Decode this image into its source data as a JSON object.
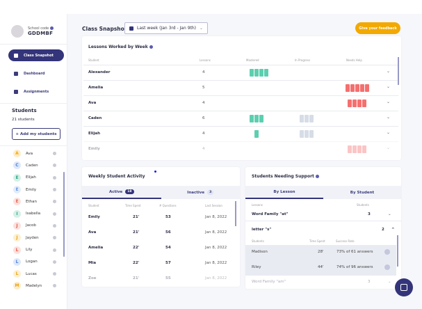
{
  "sidebar": {
    "school_code_label": "School code",
    "school_code": "GDDMBF",
    "nav": [
      {
        "label": "Class Snapshot",
        "active": true
      },
      {
        "label": "Dashboard"
      },
      {
        "label": "Assignments"
      }
    ],
    "students_title": "Students",
    "students_count": "21 students",
    "add_button": "+ Add my students",
    "students": [
      {
        "initial": "A",
        "name": "Ava",
        "color": "#f2a900",
        "bg": "#fdeccc"
      },
      {
        "initial": "C",
        "name": "Caden",
        "color": "#4a7fd8",
        "bg": "#dde8fa"
      },
      {
        "initial": "E",
        "name": "Elijah",
        "color": "#2fa785",
        "bg": "#d5f0e7"
      },
      {
        "initial": "E",
        "name": "Emily",
        "color": "#6b9be0",
        "bg": "#e3ecfa"
      },
      {
        "initial": "E",
        "name": "Ethan",
        "color": "#e66a5a",
        "bg": "#fbe1dd"
      },
      {
        "initial": "I",
        "name": "Isabella",
        "color": "#2fa785",
        "bg": "#d5f0e7"
      },
      {
        "initial": "J",
        "name": "Jacob",
        "color": "#e6564a",
        "bg": "#fbe1dd"
      },
      {
        "initial": "J",
        "name": "Jayden",
        "color": "#e8a20f",
        "bg": "#fdf0d0"
      },
      {
        "initial": "L",
        "name": "Lily",
        "color": "#e6564a",
        "bg": "#fbe1dd"
      },
      {
        "initial": "L",
        "name": "Logan",
        "color": "#4a7fd8",
        "bg": "#dde8fa"
      },
      {
        "initial": "L",
        "name": "Lucas",
        "color": "#e8a20f",
        "bg": "#fdf0d0"
      },
      {
        "initial": "M",
        "name": "Madelyn",
        "color": "#e8a20f",
        "bg": "#fdeccc"
      }
    ]
  },
  "header": {
    "title": "Class Snapshot",
    "week": "Last week (Jan 3rd - Jan 9th)",
    "feedback": "Give your feedback"
  },
  "lessons_card": {
    "title": "Lessons Worked by Week",
    "columns": [
      "Student",
      "Lessons",
      "Mastered",
      "In Progress",
      "Needs Help"
    ],
    "colors": {
      "mastered": "#5ccfb0",
      "in_progress": "#d6dde6",
      "needs_help": "#f56f6f"
    },
    "rows": [
      {
        "name": "Alexander",
        "lessons": "4",
        "mastered": 4,
        "in_progress": 0,
        "needs_help": 0
      },
      {
        "name": "Amelia",
        "lessons": "5",
        "mastered": 0,
        "in_progress": 0,
        "needs_help": 5
      },
      {
        "name": "Ava",
        "lessons": "4",
        "mastered": 0,
        "in_progress": 0,
        "needs_help": 4
      },
      {
        "name": "Caden",
        "lessons": "6",
        "mastered": 3,
        "in_progress": 3,
        "needs_help": 0
      },
      {
        "name": "Elijah",
        "lessons": "4",
        "mastered": 1,
        "in_progress": 3,
        "needs_help": 0
      },
      {
        "name": "Emily",
        "lessons": "4",
        "mastered": 0,
        "in_progress": 0,
        "needs_help": 4
      }
    ]
  },
  "activity_card": {
    "title": "Weekly Student Activity",
    "tab_active": "Active",
    "active_count": "18",
    "tab_inactive": "Inactive",
    "inactive_count": "3",
    "columns": [
      "Student",
      "Time Spent",
      "# Questions",
      "Last Session"
    ],
    "rows": [
      {
        "name": "Emily",
        "time": "21'",
        "questions": "53",
        "last": "Jan 8, 2022"
      },
      {
        "name": "Ava",
        "time": "21'",
        "questions": "56",
        "last": "Jan 8, 2022"
      },
      {
        "name": "Amelia",
        "time": "22'",
        "questions": "54",
        "last": "Jan 8, 2022"
      },
      {
        "name": "Mia",
        "time": "22'",
        "questions": "57",
        "last": "Jan 8, 2022"
      },
      {
        "name": "Zoe",
        "time": "21'",
        "questions": "55",
        "last": "Jan 8, 2022"
      }
    ]
  },
  "support_card": {
    "title": "Students Needing Support",
    "tab_lesson": "By Lesson",
    "tab_student": "By Student",
    "columns": [
      "Lessons",
      "Students"
    ],
    "lessons": [
      {
        "name": "Word Family \"at\"",
        "count": "3"
      },
      {
        "name": "letter \"s\"",
        "count": "2"
      },
      {
        "name": "Word Family \"am\"",
        "count": "3"
      }
    ],
    "sub_columns": [
      "Students",
      "Time Spent",
      "Success Rate"
    ],
    "sub_rows": [
      {
        "name": "Madison",
        "time": "28'",
        "rate": "73% of 61 answers"
      },
      {
        "name": "Riley",
        "time": "44'",
        "rate": "74% of 96 answers"
      }
    ]
  }
}
